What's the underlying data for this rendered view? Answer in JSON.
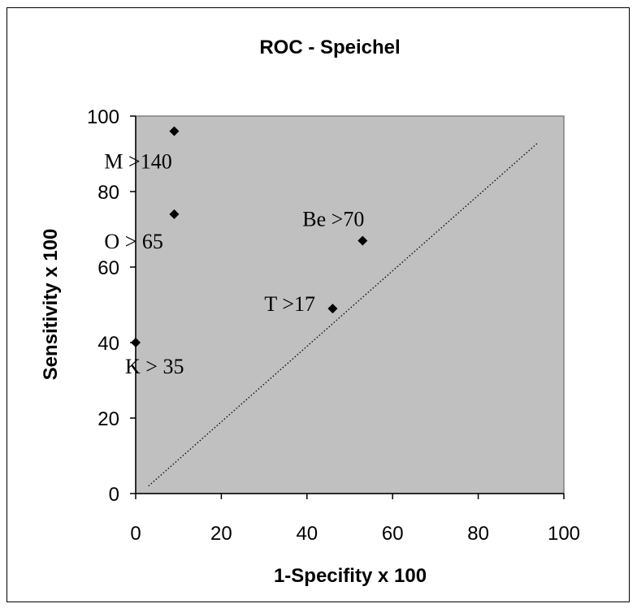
{
  "chart_data": {
    "type": "scatter",
    "title": "ROC - Speichel",
    "xlabel": "1-Specifity x 100",
    "ylabel": "Sensitivity x 100",
    "xlim": [
      0,
      100
    ],
    "ylim": [
      0,
      100
    ],
    "xticks": [
      0,
      20,
      40,
      60,
      80,
      100
    ],
    "yticks": [
      0,
      20,
      40,
      60,
      80,
      100
    ],
    "grid": false,
    "plot_background": "#c0c0c0",
    "marker_color": "#000000",
    "marker": "diamond",
    "points": [
      {
        "x": 9,
        "y": 96,
        "label": "M >140"
      },
      {
        "x": 9,
        "y": 74,
        "label": "O > 65"
      },
      {
        "x": 53,
        "y": 67,
        "label": "Be >70"
      },
      {
        "x": 46,
        "y": 49,
        "label": "T >17"
      },
      {
        "x": 0,
        "y": 40,
        "label": "K > 35"
      }
    ],
    "reference_line": {
      "style": "dotted",
      "x": [
        3,
        94
      ],
      "y": [
        2,
        93
      ]
    }
  }
}
